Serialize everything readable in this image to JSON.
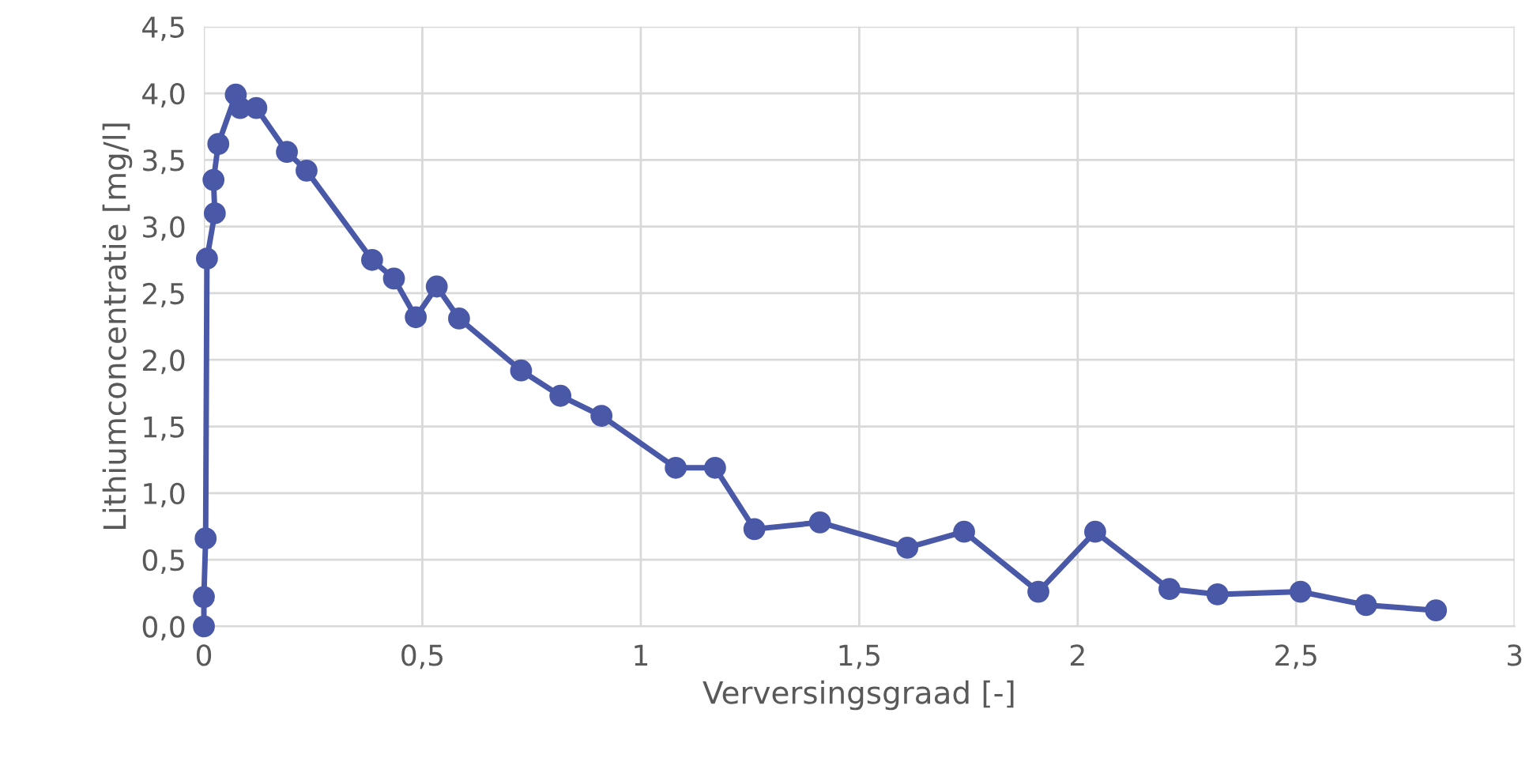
{
  "chart_data": {
    "type": "line",
    "xlabel": "Verversingsgraad [-]",
    "ylabel": "Lithiumconcentratie [mg/l]",
    "xlim": [
      0,
      3
    ],
    "xticks": [
      0,
      {
        "value": 0.5,
        "label": "0,5"
      },
      1,
      {
        "value": 1.5,
        "label": "1,5"
      },
      2,
      {
        "value": 2.5,
        "label": "2,5"
      },
      3
    ],
    "ylim": [
      0,
      4.5
    ],
    "yticks": [
      {
        "value": 0,
        "label": "0,0"
      },
      {
        "value": 0.5,
        "label": "0,5"
      },
      {
        "value": 1,
        "label": "1,0"
      },
      {
        "value": 1.5,
        "label": "1,5"
      },
      {
        "value": 2,
        "label": "2,0"
      },
      {
        "value": 2.5,
        "label": "2,5"
      },
      {
        "value": 3,
        "label": "3,0"
      },
      {
        "value": 3.5,
        "label": "3,5"
      },
      {
        "value": 4,
        "label": "4,0"
      },
      {
        "value": 4.5,
        "label": "4,5"
      }
    ],
    "grid": true,
    "marker": "circle",
    "line_style": "solid",
    "series": [
      {
        "color": "#4a58a8",
        "x": [
          0,
          0,
          0.004,
          0.007,
          0.025,
          0.022,
          0.033,
          0.073,
          0.083,
          0.12,
          0.19,
          0.235,
          0.385,
          0.435,
          0.485,
          0.533,
          0.584,
          0.726,
          0.816,
          0.91,
          1.08,
          1.17,
          1.26,
          1.41,
          1.61,
          1.74,
          1.91,
          2.04,
          2.21,
          2.32,
          2.51,
          2.66,
          2.82
        ],
        "values": [
          0,
          0.22,
          0.66,
          2.76,
          3.1,
          3.35,
          3.62,
          3.99,
          3.89,
          3.89,
          3.56,
          3.42,
          2.75,
          2.61,
          2.32,
          2.55,
          2.31,
          1.92,
          1.73,
          1.58,
          1.19,
          1.19,
          0.73,
          0.78,
          0.59,
          0.71,
          0.26,
          0.71,
          0.28,
          0.24,
          0.26,
          0.16,
          0.12
        ]
      }
    ]
  }
}
